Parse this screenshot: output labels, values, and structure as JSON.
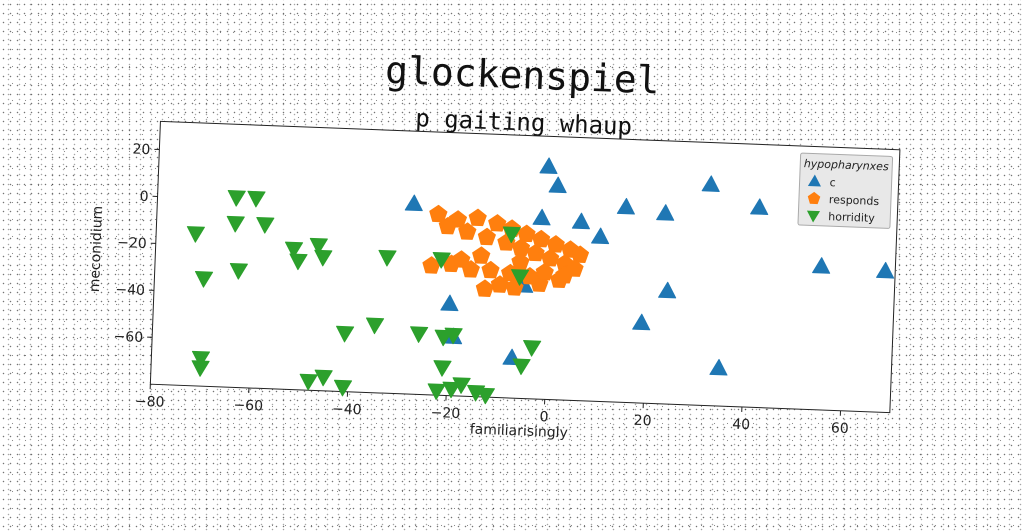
{
  "chart_data": {
    "type": "scatter",
    "title": "glockenspiel",
    "subtitle": "p gaiting whaup",
    "xlabel": "familiarisingly",
    "ylabel": "meconidium",
    "xlim": [
      -80,
      70
    ],
    "ylim": [
      -80,
      32
    ],
    "xticks": [
      -80,
      -60,
      -40,
      -20,
      0,
      20,
      40,
      60
    ],
    "yticks": [
      20,
      0,
      -20,
      -40,
      -60
    ],
    "grid": false,
    "legend": {
      "title": "hypopharynxes",
      "placement": "top-right"
    },
    "series": [
      {
        "name": "c",
        "marker": "triangle-up",
        "color": "#1f77b4",
        "points": [
          [
            -1,
            19
          ],
          [
            1,
            11
          ],
          [
            -28,
            1
          ],
          [
            -2,
            -3
          ],
          [
            6,
            -4
          ],
          [
            10,
            -10
          ],
          [
            15,
            3
          ],
          [
            23,
            1
          ],
          [
            32,
            14
          ],
          [
            42,
            5
          ],
          [
            55,
            -19
          ],
          [
            68,
            -20
          ],
          [
            24,
            -32
          ],
          [
            19,
            -46
          ],
          [
            -20,
            -41
          ],
          [
            -19,
            -55
          ],
          [
            -7,
            -63
          ],
          [
            -5,
            -32
          ],
          [
            35,
            -64
          ]
        ]
      },
      {
        "name": "responds",
        "marker": "pentagon",
        "color": "#ff7f0e",
        "points": [
          [
            -23,
            -3
          ],
          [
            -19,
            -5
          ],
          [
            -15,
            -4
          ],
          [
            -11,
            -6
          ],
          [
            -8,
            -8
          ],
          [
            -5,
            -10
          ],
          [
            -2,
            -12
          ],
          [
            1,
            -14
          ],
          [
            4,
            -16
          ],
          [
            6,
            -18
          ],
          [
            -21,
            -8
          ],
          [
            -17,
            -10
          ],
          [
            -13,
            -12
          ],
          [
            -9,
            -14
          ],
          [
            -6,
            -16
          ],
          [
            -3,
            -18
          ],
          [
            0,
            -20
          ],
          [
            3,
            -22
          ],
          [
            5,
            -24
          ],
          [
            -24,
            -25
          ],
          [
            -20,
            -24
          ],
          [
            -16,
            -26
          ],
          [
            -12,
            -26
          ],
          [
            -8,
            -27
          ],
          [
            -4,
            -28
          ],
          [
            -10,
            -32
          ],
          [
            -13,
            -34
          ],
          [
            -7,
            -33
          ],
          [
            -2,
            -31
          ],
          [
            2,
            -29
          ],
          [
            -18,
            -22
          ],
          [
            -14,
            -20
          ],
          [
            -6,
            -22
          ],
          [
            -1,
            -26
          ],
          [
            3,
            -27
          ]
        ]
      },
      {
        "name": "horridity",
        "marker": "triangle-down",
        "color": "#2ca02c",
        "points": [
          [
            -72,
            -15
          ],
          [
            -64,
            1
          ],
          [
            -60,
            1
          ],
          [
            -64,
            -10
          ],
          [
            -58,
            -10
          ],
          [
            -70,
            -34
          ],
          [
            -63,
            -30
          ],
          [
            -52,
            -20
          ],
          [
            -51,
            -25
          ],
          [
            -47,
            -18
          ],
          [
            -46,
            -23
          ],
          [
            -33,
            -22
          ],
          [
            -22,
            -22
          ],
          [
            -8,
            -10
          ],
          [
            -6,
            -28
          ],
          [
            -41,
            -55
          ],
          [
            -35,
            -51
          ],
          [
            -26,
            -54
          ],
          [
            -21,
            -55
          ],
          [
            -19,
            -54
          ],
          [
            -3,
            -58
          ],
          [
            -5,
            -66
          ],
          [
            -21,
            -68
          ],
          [
            -22,
            -78
          ],
          [
            -19,
            -77
          ],
          [
            -17,
            -75
          ],
          [
            -14,
            -78
          ],
          [
            -12,
            -79
          ],
          [
            -41,
            -78
          ],
          [
            -45,
            -74
          ],
          [
            -48,
            -76
          ],
          [
            -70,
            -68
          ],
          [
            -70,
            -72
          ]
        ]
      }
    ]
  }
}
